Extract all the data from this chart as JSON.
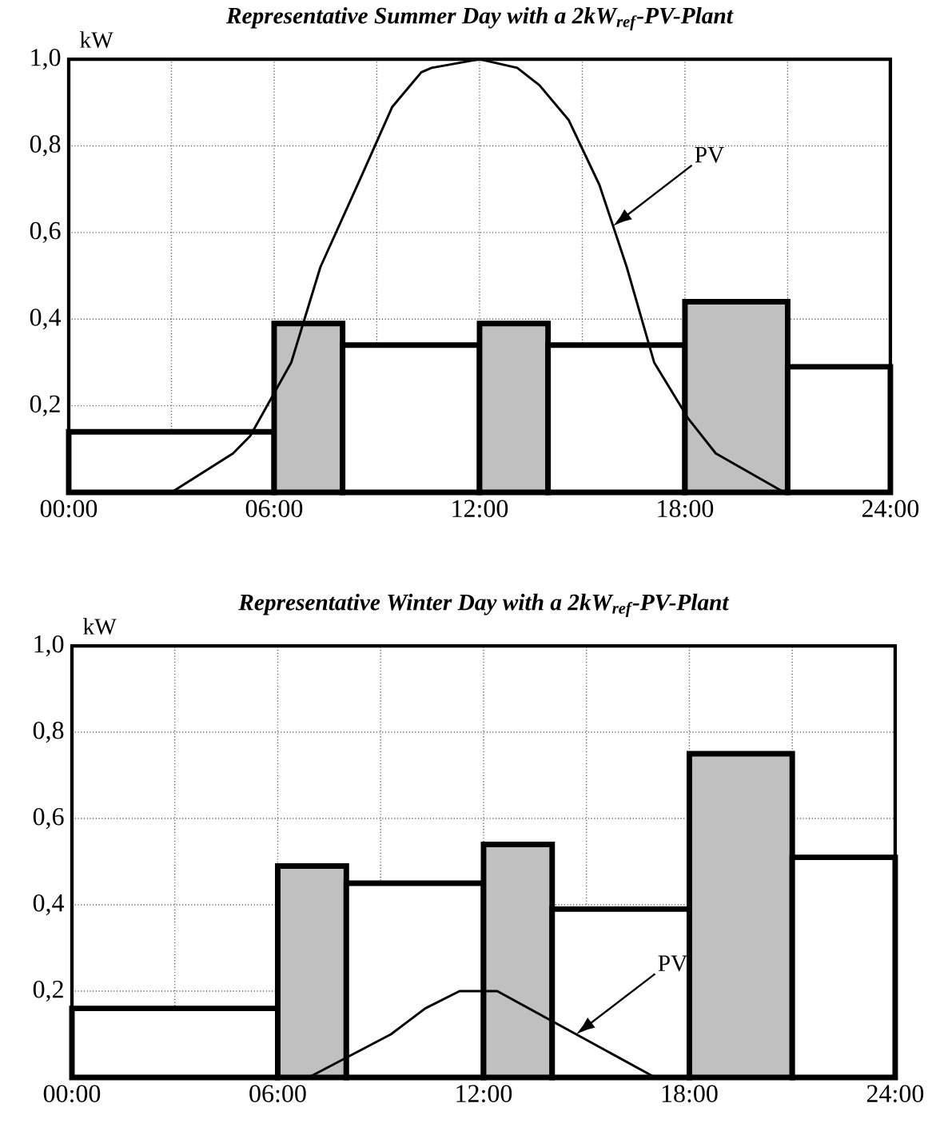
{
  "chart_data": [
    {
      "type": "histogram",
      "title": "Representative Summer Day with a 2kW$_{ref}$-PV-Plant",
      "ylabel": "kW",
      "bins": [
        0,
        6,
        8,
        12,
        14,
        18,
        21,
        24
      ],
      "values": [
        0.14,
        0.39,
        0.34,
        0.39,
        0.34,
        0.44,
        0.29
      ],
      "colors": [
        "#ffffff",
        "#c0c0c0",
        "#ffffff",
        "#c0c0c0",
        "#ffffff",
        "#c0c0c0",
        "#ffffff"
      ],
      "series": [
        {
          "type": "line",
          "name": "PV",
          "color": "#000000",
          "x": [
            3,
            4.8,
            5.3,
            6.5,
            7.35,
            8.55,
            9.45,
            10.3,
            10.6,
            12,
            13.1,
            13.75,
            14.6,
            15.5,
            16.3,
            17.1,
            18.1,
            18.9,
            20.9
          ],
          "values": [
            0,
            0.09,
            0.13,
            0.3,
            0.52,
            0.73,
            0.89,
            0.97,
            0.98,
            1.0,
            0.98,
            0.94,
            0.86,
            0.71,
            0.52,
            0.3,
            0.17,
            0.09,
            0
          ]
        }
      ],
      "xlim": [
        0,
        24
      ],
      "ylim": [
        0,
        1
      ],
      "xticks": [
        {
          "value": 0,
          "label": "00:00"
        },
        {
          "value": 3,
          "label": null
        },
        {
          "value": 6,
          "label": "06:00"
        },
        {
          "value": 9,
          "label": null
        },
        {
          "value": 12,
          "label": "12:00"
        },
        {
          "value": 15,
          "label": null
        },
        {
          "value": 18,
          "label": "18:00"
        },
        {
          "value": 21,
          "label": null
        },
        {
          "value": 24,
          "label": "24:00"
        }
      ],
      "yticks": [
        {
          "value": 0.2,
          "label": "0,2"
        },
        {
          "value": 0.4,
          "label": "0,4"
        },
        {
          "value": 0.6,
          "label": "0,6"
        },
        {
          "value": 0.8,
          "label": "0,8"
        },
        {
          "value": 1.0,
          "label": "1,0"
        }
      ],
      "grid": true
    },
    {
      "type": "histogram",
      "title": "Representative Winter Day with a 2kW$_{ref}$-PV-Plant",
      "ylabel": "kW",
      "bins": [
        0,
        6,
        8,
        12,
        14,
        18,
        21,
        24
      ],
      "values": [
        0.16,
        0.49,
        0.45,
        0.54,
        0.39,
        0.75,
        0.51
      ],
      "colors": [
        "#ffffff",
        "#c0c0c0",
        "#ffffff",
        "#c0c0c0",
        "#ffffff",
        "#c0c0c0",
        "#ffffff"
      ],
      "series": [
        {
          "type": "line",
          "name": "PV",
          "color": "#000000",
          "x": [
            6.9,
            9.3,
            10.3,
            11.3,
            12.4,
            17
          ],
          "values": [
            0,
            0.1,
            0.16,
            0.2,
            0.2,
            0
          ]
        }
      ],
      "xlim": [
        0,
        24
      ],
      "ylim": [
        0,
        1
      ],
      "xticks": [
        {
          "value": 0,
          "label": "00:00"
        },
        {
          "value": 3,
          "label": null
        },
        {
          "value": 6,
          "label": "06:00"
        },
        {
          "value": 9,
          "label": null
        },
        {
          "value": 12,
          "label": "12:00"
        },
        {
          "value": 15,
          "label": null
        },
        {
          "value": 18,
          "label": "18:00"
        },
        {
          "value": 21,
          "label": null
        },
        {
          "value": 24,
          "label": "24:00"
        }
      ],
      "yticks": [
        {
          "value": 0.2,
          "label": "0,2"
        },
        {
          "value": 0.4,
          "label": "0,4"
        },
        {
          "value": 0.6,
          "label": "0,6"
        },
        {
          "value": 0.8,
          "label": "0,8"
        },
        {
          "value": 1.0,
          "label": "1,0"
        }
      ],
      "grid": true
    }
  ]
}
